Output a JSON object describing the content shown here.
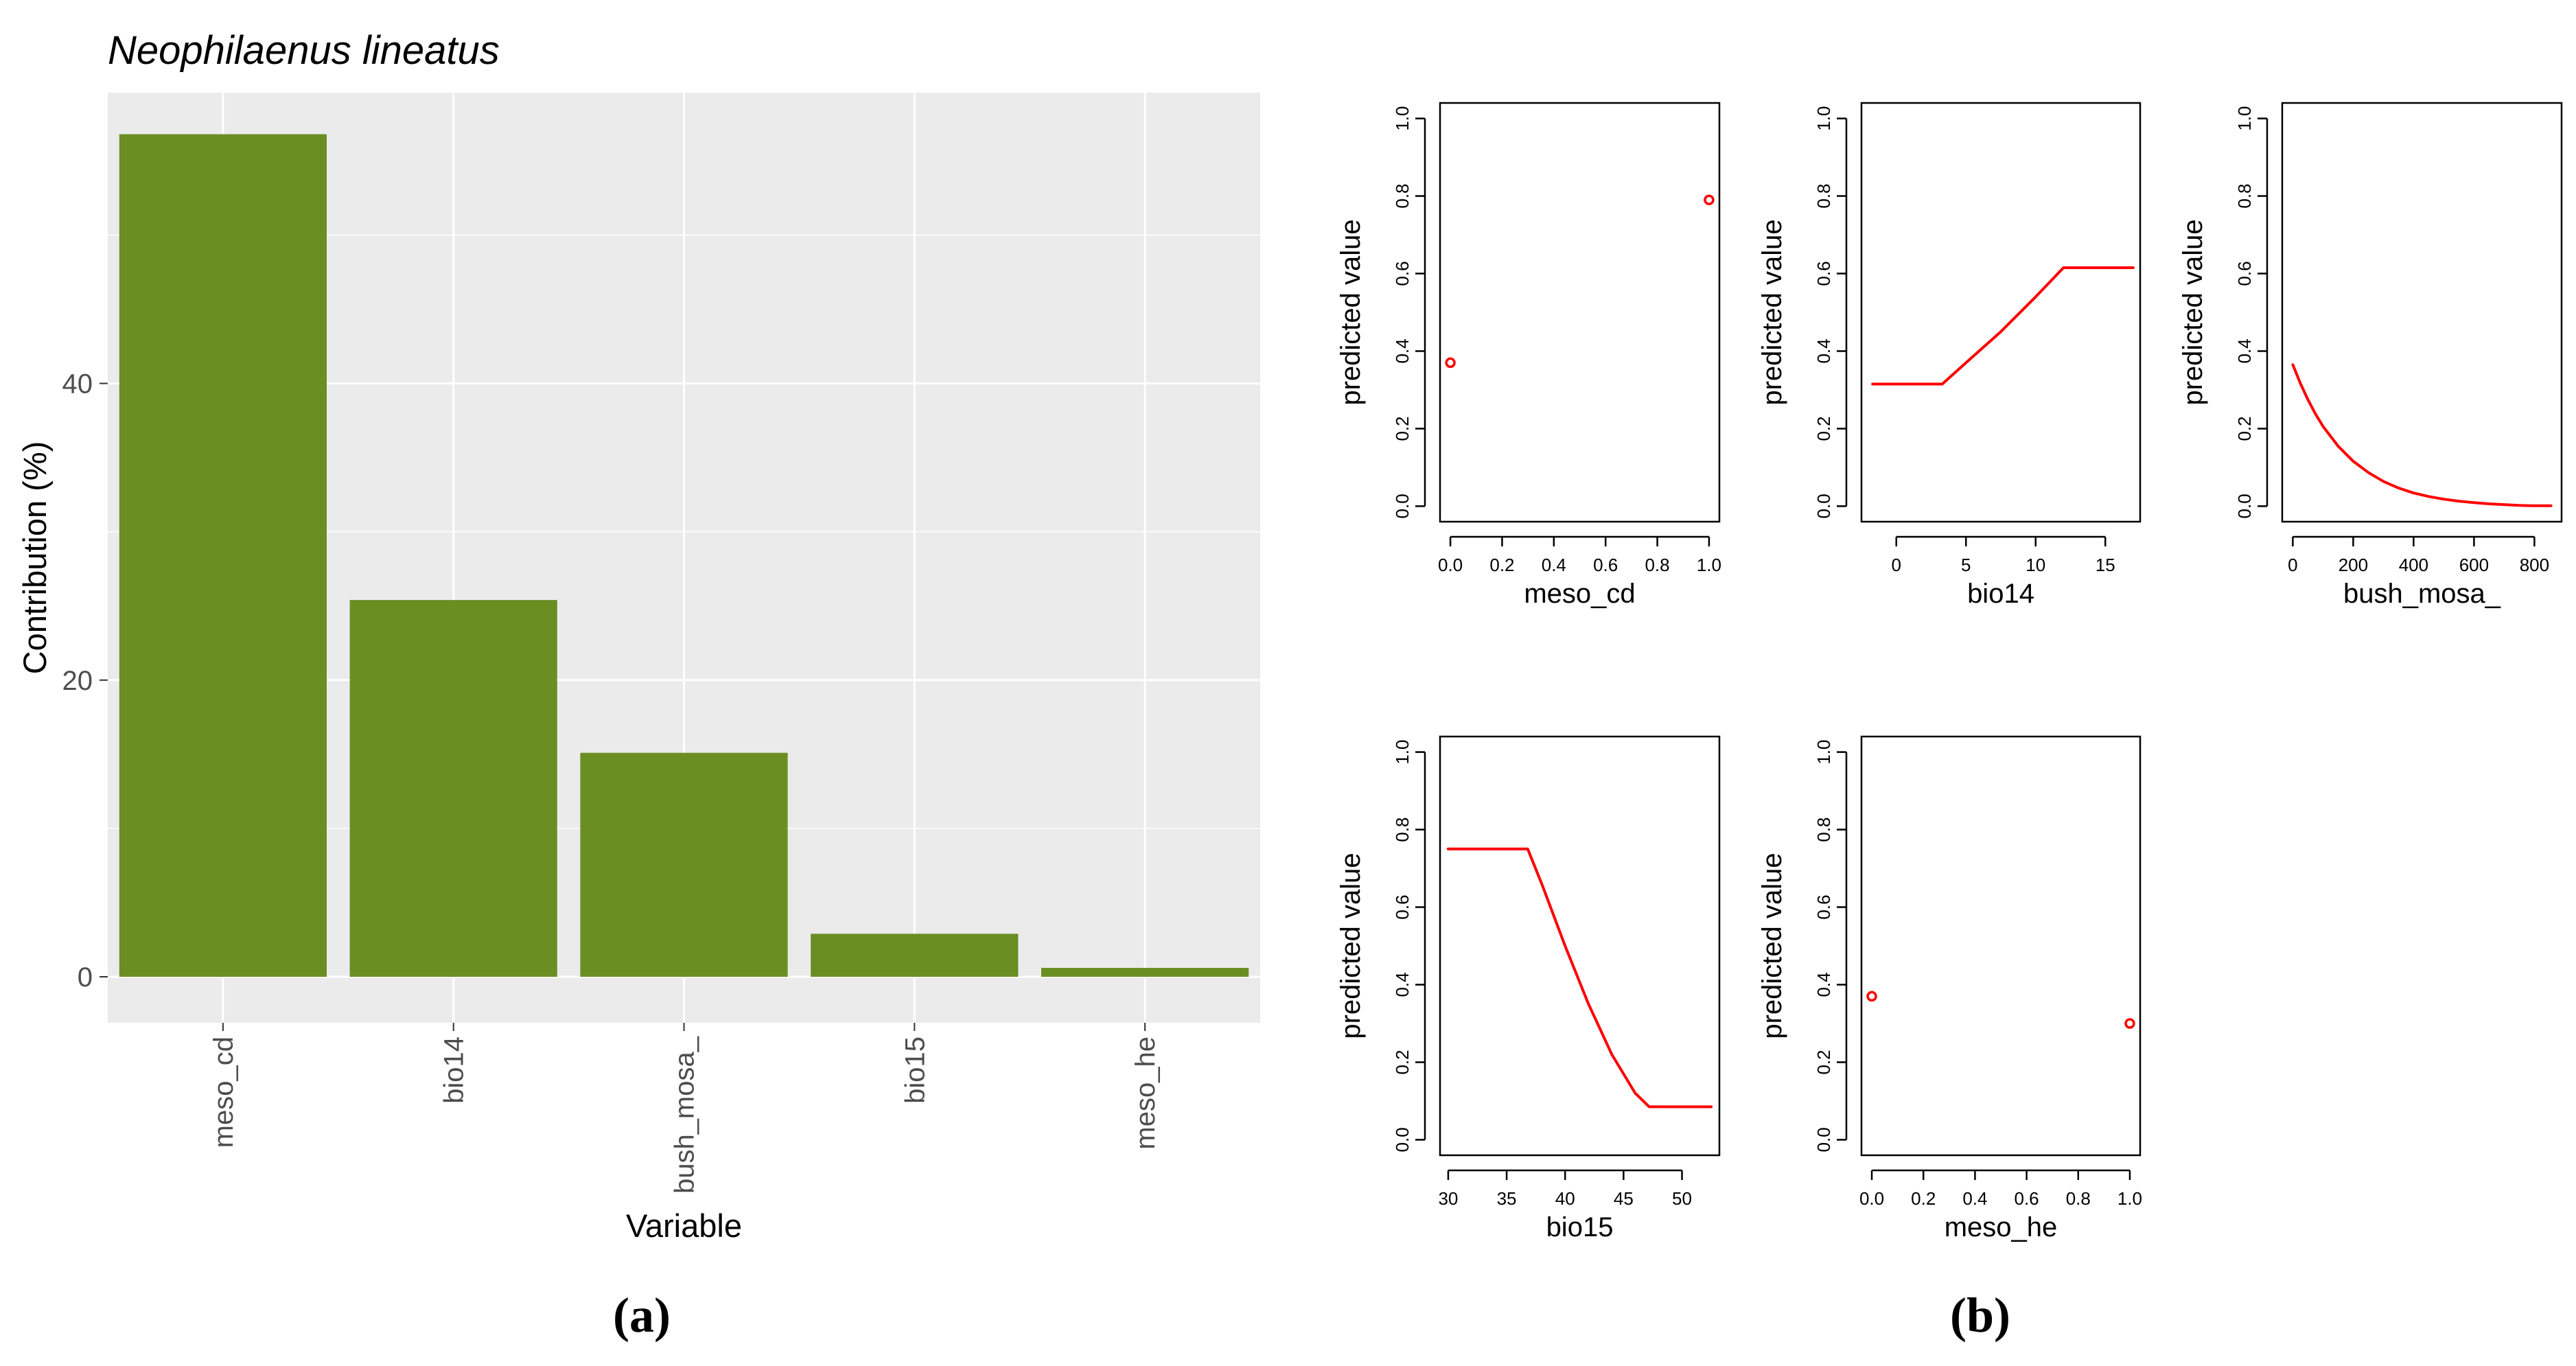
{
  "colors": {
    "bar": "#6b8e23",
    "panel_bg": "#ebebeb",
    "grid": "#ffffff",
    "curve": "#ff0000",
    "axis": "#000000",
    "tick_text_a": "#4d4d4d"
  },
  "panel_a": {
    "caption": "(a)",
    "chart_data": {
      "type": "bar",
      "title": "Neophilaenus lineatus",
      "xlabel": "Variable",
      "ylabel": "Contribution (%)",
      "categories": [
        "meso_cd",
        "bio14",
        "bush_mosa_",
        "bio15",
        "meso_he"
      ],
      "values": [
        56.8,
        25.4,
        15.1,
        2.9,
        0.6
      ],
      "ylim": [
        -3.1,
        59.6
      ],
      "yticks": [
        0,
        20,
        40
      ],
      "ytick_labels": [
        "0",
        "20",
        "40"
      ],
      "grid": true
    }
  },
  "panel_b": {
    "caption": "(b)",
    "chart_data": [
      {
        "type": "scatter",
        "xlabel": "meso_cd",
        "ylabel": "predicted value",
        "xlim": [
          -0.04,
          1.04
        ],
        "ylim": [
          -0.04,
          1.04
        ],
        "xticks": [
          0,
          0.2,
          0.4,
          0.6,
          0.8,
          1
        ],
        "xtick_labels": [
          "0.0",
          "0.2",
          "0.4",
          "0.6",
          "0.8",
          "1.0"
        ],
        "yticks": [
          0,
          0.2,
          0.4,
          0.6,
          0.8,
          1
        ],
        "ytick_labels": [
          "0.0",
          "0.2",
          "0.4",
          "0.6",
          "0.8",
          "1.0"
        ],
        "x": [
          0,
          1
        ],
        "y": [
          0.37,
          0.79
        ]
      },
      {
        "type": "line",
        "xlabel": "bio14",
        "ylabel": "predicted value",
        "xlim": [
          -2.5,
          17.5
        ],
        "ylim": [
          -0.04,
          1.04
        ],
        "xticks": [
          0,
          5,
          10,
          15
        ],
        "xtick_labels": [
          "0",
          "5",
          "10",
          "15"
        ],
        "yticks": [
          0,
          0.2,
          0.4,
          0.6,
          0.8,
          1
        ],
        "ytick_labels": [
          "0.0",
          "0.2",
          "0.4",
          "0.6",
          "0.8",
          "1.0"
        ],
        "x": [
          -1.7,
          3.3,
          5,
          7.5,
          10,
          12,
          17
        ],
        "y": [
          0.315,
          0.315,
          0.37,
          0.45,
          0.54,
          0.615,
          0.615
        ]
      },
      {
        "type": "line",
        "xlabel": "bush_mosa_",
        "ylabel": "predicted value",
        "xlim": [
          -35,
          890
        ],
        "ylim": [
          -0.04,
          1.04
        ],
        "xticks": [
          0,
          200,
          400,
          600,
          800
        ],
        "xtick_labels": [
          "0",
          "200",
          "400",
          "600",
          "800"
        ],
        "yticks": [
          0,
          0.2,
          0.4,
          0.6,
          0.8,
          1
        ],
        "ytick_labels": [
          "0.0",
          "0.2",
          "0.4",
          "0.6",
          "0.8",
          "1.0"
        ],
        "x": [
          0,
          25,
          50,
          75,
          100,
          150,
          200,
          250,
          300,
          350,
          400,
          450,
          500,
          550,
          600,
          650,
          700,
          750,
          800,
          855
        ],
        "y": [
          0.365,
          0.317,
          0.275,
          0.238,
          0.206,
          0.155,
          0.116,
          0.087,
          0.064,
          0.047,
          0.034,
          0.025,
          0.018,
          0.013,
          0.009,
          0.006,
          0.004,
          0.002,
          0.001,
          0.001
        ]
      },
      {
        "type": "line",
        "xlabel": "bio15",
        "ylabel": "predicted value",
        "xlim": [
          29.3,
          53.2
        ],
        "ylim": [
          -0.04,
          1.04
        ],
        "xticks": [
          30,
          35,
          40,
          45,
          50
        ],
        "xtick_labels": [
          "30",
          "35",
          "40",
          "45",
          "50"
        ],
        "yticks": [
          0,
          0.2,
          0.4,
          0.6,
          0.8,
          1
        ],
        "ytick_labels": [
          "0.0",
          "0.2",
          "0.4",
          "0.6",
          "0.8",
          "1.0"
        ],
        "x": [
          30,
          36.8,
          38,
          40,
          42,
          44,
          46,
          47.2,
          52.5
        ],
        "y": [
          0.75,
          0.75,
          0.66,
          0.5,
          0.35,
          0.22,
          0.12,
          0.085,
          0.085
        ]
      },
      {
        "type": "scatter",
        "xlabel": "meso_he",
        "ylabel": "predicted value",
        "xlim": [
          -0.04,
          1.04
        ],
        "ylim": [
          -0.04,
          1.04
        ],
        "xticks": [
          0,
          0.2,
          0.4,
          0.6,
          0.8,
          1
        ],
        "xtick_labels": [
          "0.0",
          "0.2",
          "0.4",
          "0.6",
          "0.8",
          "1.0"
        ],
        "yticks": [
          0,
          0.2,
          0.4,
          0.6,
          0.8,
          1
        ],
        "ytick_labels": [
          "0.0",
          "0.2",
          "0.4",
          "0.6",
          "0.8",
          "1.0"
        ],
        "x": [
          0,
          1
        ],
        "y": [
          0.37,
          0.3
        ]
      }
    ]
  }
}
